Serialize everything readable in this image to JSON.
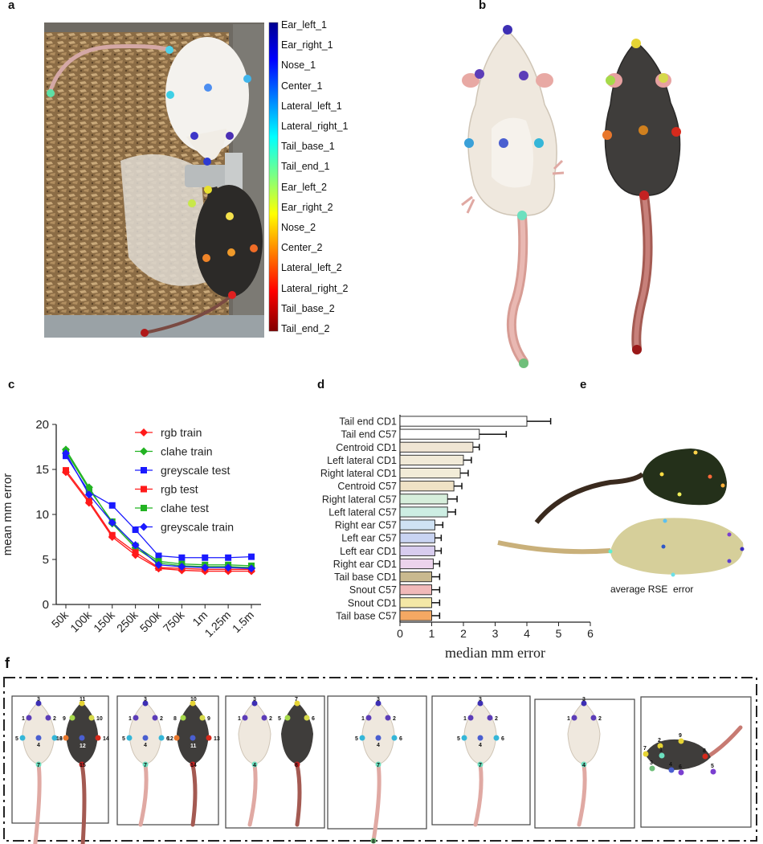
{
  "panels": {
    "a": "a",
    "b": "b",
    "c": "c",
    "d": "d",
    "e": "e",
    "f": "f"
  },
  "colors": {
    "dark_mouse": "#3f3d3b",
    "light_mouse": "#efe8de",
    "tail": "#d79c94",
    "bedding": "#a88a62"
  },
  "panel_a": {
    "colorbar_labels": [
      "Ear_left_1",
      "Ear_right_1",
      "Nose_1",
      "Center_1",
      "Lateral_left_1",
      "Lateral_right_1",
      "Tail_base_1",
      "Tail_end_1",
      "Ear_left_2",
      "Ear_right_2",
      "Nose_2",
      "Center_2",
      "Lateral_left_2",
      "Lateral_right_2",
      "Tail_base_2",
      "Tail_end_2"
    ]
  },
  "panel_e": {
    "caption": "average RSE  error"
  },
  "panel_f": {
    "box1": {
      "white": [
        "3",
        "1",
        "2",
        "5",
        "4",
        "6",
        "7",
        "8"
      ],
      "black": [
        "11",
        "9",
        "10",
        "13",
        "12",
        "14",
        "15",
        "16"
      ]
    },
    "box2": {
      "white": [
        "3",
        "1",
        "2",
        "5",
        "4",
        "6",
        "7"
      ],
      "black": [
        "10",
        "8",
        "9",
        "12",
        "11",
        "13",
        "14"
      ]
    },
    "box3": {
      "white": [
        "3",
        "1",
        "2",
        "4"
      ],
      "black": [
        "7",
        "5",
        "6",
        "8"
      ]
    },
    "box4": {
      "white": [
        "3",
        "1",
        "2",
        "5",
        "4",
        "6",
        "7",
        "8"
      ]
    },
    "box5": {
      "white": [
        "3",
        "1",
        "2",
        "5",
        "4",
        "6",
        "7"
      ]
    },
    "box6": {
      "white": [
        "3",
        "1",
        "2",
        "4"
      ]
    },
    "box7": {
      "black": [
        "2",
        "9",
        "7",
        "1",
        "8",
        "3",
        "4",
        "6",
        "5"
      ]
    }
  },
  "chart_data": [
    {
      "type": "line",
      "panel": "c",
      "categories": [
        "50k",
        "100k",
        "150k",
        "250k",
        "500k",
        "750k",
        "1m",
        "1.25m",
        "1.5m"
      ],
      "ylabel": "mean mm error",
      "ylim": [
        0,
        20
      ],
      "yticks": [
        "0",
        "5",
        "10",
        "15",
        "20"
      ],
      "series": [
        {
          "name": "rgb  train",
          "color": "#ff1a1a",
          "marker": "diamond",
          "values": [
            14.7,
            11.3,
            7.5,
            5.5,
            4.0,
            3.8,
            3.7,
            3.7,
            3.7
          ]
        },
        {
          "name": "clahe train",
          "color": "#22b322",
          "marker": "diamond",
          "values": [
            17.2,
            13.0,
            9.0,
            6.3,
            4.6,
            4.3,
            4.2,
            4.2,
            4.1
          ]
        },
        {
          "name": "greyscale test",
          "color": "#1a1aff",
          "marker": "square",
          "values": [
            16.5,
            12.5,
            11.0,
            8.3,
            5.4,
            5.2,
            5.2,
            5.2,
            5.3
          ]
        },
        {
          "name": "rgb test",
          "color": "#ff1a1a",
          "marker": "square",
          "values": [
            14.9,
            11.5,
            7.7,
            5.8,
            4.1,
            4.0,
            3.9,
            3.9,
            3.9
          ]
        },
        {
          "name": "clahe test",
          "color": "#22b322",
          "marker": "square",
          "values": [
            17.0,
            12.8,
            9.2,
            6.5,
            4.8,
            4.5,
            4.4,
            4.4,
            4.3
          ]
        },
        {
          "name": "greyscale train",
          "color": "#1a1aff",
          "marker": "diamond",
          "values": [
            16.8,
            12.2,
            9.1,
            6.6,
            4.4,
            4.2,
            4.1,
            4.1,
            4.0
          ]
        }
      ]
    },
    {
      "type": "bar",
      "panel": "d",
      "orientation": "horizontal",
      "xlabel": "median mm error",
      "xlim": [
        0,
        6
      ],
      "xticks": [
        "0",
        "1",
        "2",
        "3",
        "4",
        "5",
        "6"
      ],
      "categories": [
        "Tail end CD1",
        "Tail end C57",
        "Centroid CD1",
        "Left lateral CD1",
        "Right lateral CD1",
        "Centroid C57",
        "Right lateral C57",
        "Left lateral C57",
        "Right ear C57",
        "Left ear C57",
        "Left ear CD1",
        "Right ear CD1",
        "Tail base CD1",
        "Snout C57",
        "Snout CD1",
        "Tail base C57"
      ],
      "values": [
        4.0,
        2.5,
        2.3,
        2.0,
        1.9,
        1.7,
        1.5,
        1.5,
        1.1,
        1.1,
        1.1,
        1.05,
        1.0,
        1.0,
        1.0,
        1.0
      ],
      "errors": [
        0.75,
        0.85,
        0.2,
        0.25,
        0.25,
        0.25,
        0.3,
        0.25,
        0.25,
        0.2,
        0.2,
        0.2,
        0.25,
        0.25,
        0.25,
        0.25
      ],
      "colors": [
        "#ffffff",
        "#ffffff",
        "#efe5d4",
        "#f1ead8",
        "#f2ecd8",
        "#efe2c6",
        "#d6eedb",
        "#cdeee3",
        "#cfe2f4",
        "#c9d4f2",
        "#d8cdef",
        "#ecd3ec",
        "#c9b98f",
        "#f1b9b9",
        "#f4e8a6",
        "#f4a863"
      ]
    }
  ]
}
